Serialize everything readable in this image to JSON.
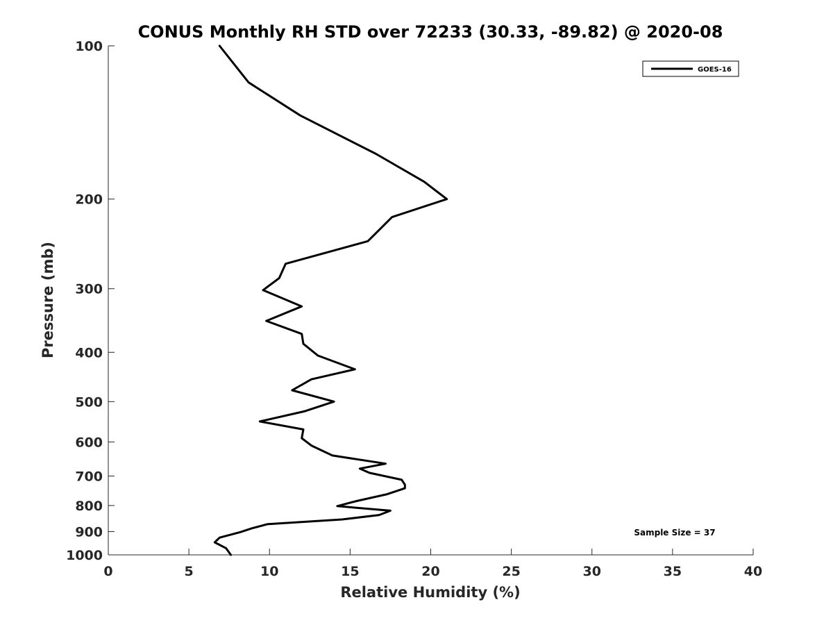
{
  "chart_data": {
    "type": "line",
    "title": "CONUS Monthly RH STD over 72233 (30.33, -89.82) @ 2020-08",
    "xlabel": "Relative Humidity (%)",
    "ylabel": "Pressure (mb)",
    "xlim": [
      0,
      40
    ],
    "ylim": [
      100,
      1000
    ],
    "yscale": "log",
    "y_reversed": true,
    "x_ticks": [
      "0",
      "5",
      "10",
      "15",
      "20",
      "25",
      "30",
      "35",
      "40"
    ],
    "y_ticks": [
      "100",
      "200",
      "300",
      "400",
      "500",
      "600",
      "700",
      "800",
      "900",
      "1000"
    ],
    "grid": false,
    "legend_position": "top-right",
    "annotation": "Sample Size = 37",
    "series": [
      {
        "name": "GOES-16",
        "color": "#000000",
        "x": [
          6.9,
          8.7,
          11.9,
          16.6,
          19.6,
          21.0,
          17.6,
          16.1,
          11.0,
          10.6,
          9.6,
          12.0,
          9.8,
          12.0,
          12.1,
          13.0,
          15.3,
          12.6,
          11.4,
          14.0,
          12.2,
          9.4,
          12.1,
          12.0,
          12.6,
          13.9,
          17.2,
          15.6,
          16.2,
          18.2,
          18.4,
          18.4,
          17.3,
          15.4,
          14.2,
          17.5,
          16.8,
          14.5,
          9.9,
          8.9,
          8.2,
          6.9,
          6.6,
          7.3,
          7.6
        ],
        "y": [
          100,
          118,
          137,
          163,
          185,
          200,
          217,
          242,
          268,
          286,
          302,
          325,
          347,
          368,
          385,
          406,
          432,
          452,
          475,
          500,
          522,
          547,
          567,
          590,
          610,
          638,
          662,
          677,
          690,
          712,
          728,
          740,
          760,
          784,
          802,
          819,
          835,
          852,
          870,
          887,
          902,
          925,
          945,
          970,
          1000
        ]
      }
    ]
  }
}
